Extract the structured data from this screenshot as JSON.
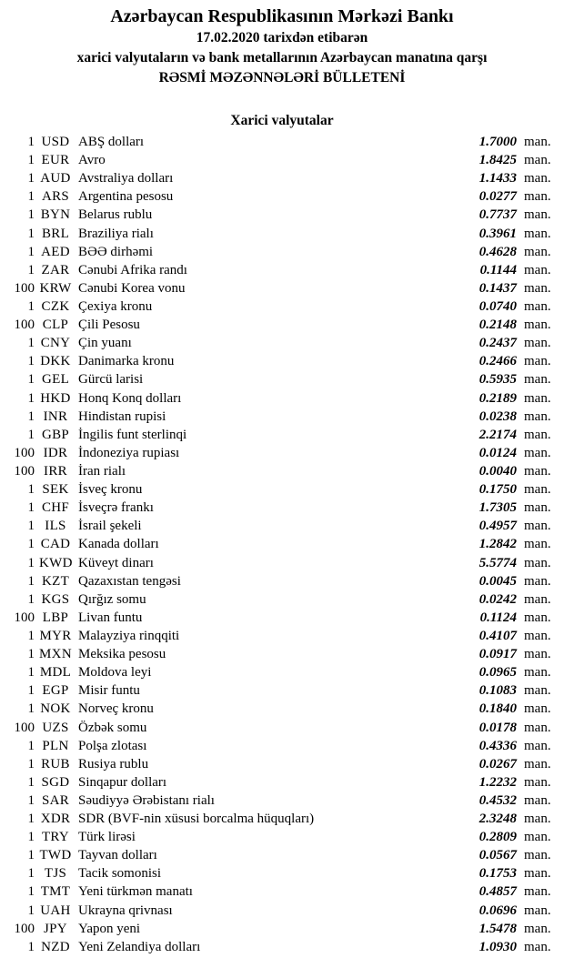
{
  "header": {
    "bank_name": "Azərbaycan Respublikasının Mərkəzi Bankı",
    "date_line": "17.02.2020 tarixdən etibarən",
    "subtitle": "xarici valyutaların və bank metallarının Azərbaycan manatına qarşı",
    "bulletin_title": "RƏSMİ MƏZƏNNƏLƏRİ BÜLLETENİ"
  },
  "section_title": "Xarici valyutalar",
  "unit_label": "man.",
  "text_color": "#000000",
  "background_color": "#ffffff",
  "rates": [
    {
      "qty": "1",
      "code": "USD",
      "name": "ABŞ dolları",
      "rate": "1.7000"
    },
    {
      "qty": "1",
      "code": "EUR",
      "name": "Avro",
      "rate": "1.8425"
    },
    {
      "qty": "1",
      "code": "AUD",
      "name": "Avstraliya dolları",
      "rate": "1.1433"
    },
    {
      "qty": "1",
      "code": "ARS",
      "name": "Argentina pesosu",
      "rate": "0.0277"
    },
    {
      "qty": "1",
      "code": "BYN",
      "name": "Belarus rublu",
      "rate": "0.7737"
    },
    {
      "qty": "1",
      "code": "BRL",
      "name": "Braziliya rialı",
      "rate": "0.3961"
    },
    {
      "qty": "1",
      "code": "AED",
      "name": "BƏƏ dirhəmi",
      "rate": "0.4628"
    },
    {
      "qty": "1",
      "code": "ZAR",
      "name": "Cənubi Afrika randı",
      "rate": "0.1144"
    },
    {
      "qty": "100",
      "code": "KRW",
      "name": "Cənubi Korea vonu",
      "rate": "0.1437"
    },
    {
      "qty": "1",
      "code": "CZK",
      "name": "Çexiya kronu",
      "rate": "0.0740"
    },
    {
      "qty": "100",
      "code": "CLP",
      "name": "Çili Pesosu",
      "rate": "0.2148"
    },
    {
      "qty": "1",
      "code": "CNY",
      "name": "Çin yuanı",
      "rate": "0.2437"
    },
    {
      "qty": "1",
      "code": "DKK",
      "name": "Danimarka kronu",
      "rate": "0.2466"
    },
    {
      "qty": "1",
      "code": "GEL",
      "name": "Gürcü larisi",
      "rate": "0.5935"
    },
    {
      "qty": "1",
      "code": "HKD",
      "name": "Honq Konq dolları",
      "rate": "0.2189"
    },
    {
      "qty": "1",
      "code": "INR",
      "name": "Hindistan rupisi",
      "rate": "0.0238"
    },
    {
      "qty": "1",
      "code": "GBP",
      "name": "İngilis funt sterlinqi",
      "rate": "2.2174"
    },
    {
      "qty": "100",
      "code": "IDR",
      "name": "İndoneziya rupiası",
      "rate": "0.0124"
    },
    {
      "qty": "100",
      "code": "IRR",
      "name": "İran rialı",
      "rate": "0.0040"
    },
    {
      "qty": "1",
      "code": "SEK",
      "name": "İsveç kronu",
      "rate": "0.1750"
    },
    {
      "qty": "1",
      "code": "CHF",
      "name": "İsveçrə frankı",
      "rate": "1.7305"
    },
    {
      "qty": "1",
      "code": "ILS",
      "name": "İsrail şekeli",
      "rate": "0.4957"
    },
    {
      "qty": "1",
      "code": "CAD",
      "name": "Kanada dolları",
      "rate": "1.2842"
    },
    {
      "qty": "1",
      "code": "KWD",
      "name": "Küveyt dinarı",
      "rate": "5.5774"
    },
    {
      "qty": "1",
      "code": "KZT",
      "name": "Qazaxıstan tengəsi",
      "rate": "0.0045"
    },
    {
      "qty": "1",
      "code": "KGS",
      "name": "Qırğız somu",
      "rate": "0.0242"
    },
    {
      "qty": "100",
      "code": "LBP",
      "name": "Livan funtu",
      "rate": "0.1124"
    },
    {
      "qty": "1",
      "code": "MYR",
      "name": "Malayziya rinqqiti",
      "rate": "0.4107"
    },
    {
      "qty": "1",
      "code": "MXN",
      "name": "Meksika pesosu",
      "rate": "0.0917"
    },
    {
      "qty": "1",
      "code": "MDL",
      "name": "Moldova leyi",
      "rate": "0.0965"
    },
    {
      "qty": "1",
      "code": "EGP",
      "name": "Misir funtu",
      "rate": "0.1083"
    },
    {
      "qty": "1",
      "code": "NOK",
      "name": "Norveç kronu",
      "rate": "0.1840"
    },
    {
      "qty": "100",
      "code": "UZS",
      "name": "Özbək somu",
      "rate": "0.0178"
    },
    {
      "qty": "1",
      "code": "PLN",
      "name": "Polşa zlotası",
      "rate": "0.4336"
    },
    {
      "qty": "1",
      "code": "RUB",
      "name": "Rusiya rublu",
      "rate": "0.0267"
    },
    {
      "qty": "1",
      "code": "SGD",
      "name": "Sinqapur dolları",
      "rate": "1.2232"
    },
    {
      "qty": "1",
      "code": "SAR",
      "name": "Səudiyyə Ərəbistanı rialı",
      "rate": "0.4532"
    },
    {
      "qty": "1",
      "code": "XDR",
      "name": "SDR (BVF-nin xüsusi borcalma hüquqları)",
      "rate": "2.3248"
    },
    {
      "qty": "1",
      "code": "TRY",
      "name": "Türk lirəsi",
      "rate": "0.2809"
    },
    {
      "qty": "1",
      "code": "TWD",
      "name": "Tayvan dolları",
      "rate": "0.0567"
    },
    {
      "qty": "1",
      "code": "TJS",
      "name": "Tacik somonisi",
      "rate": "0.1753"
    },
    {
      "qty": "1",
      "code": "TMT",
      "name": "Yeni türkmən manatı",
      "rate": "0.4857"
    },
    {
      "qty": "1",
      "code": "UAH",
      "name": "Ukrayna qrivnası",
      "rate": "0.0696"
    },
    {
      "qty": "100",
      "code": "JPY",
      "name": "Yapon yeni",
      "rate": "1.5478"
    },
    {
      "qty": "1",
      "code": "NZD",
      "name": "Yeni Zelandiya dolları",
      "rate": "1.0930"
    }
  ]
}
